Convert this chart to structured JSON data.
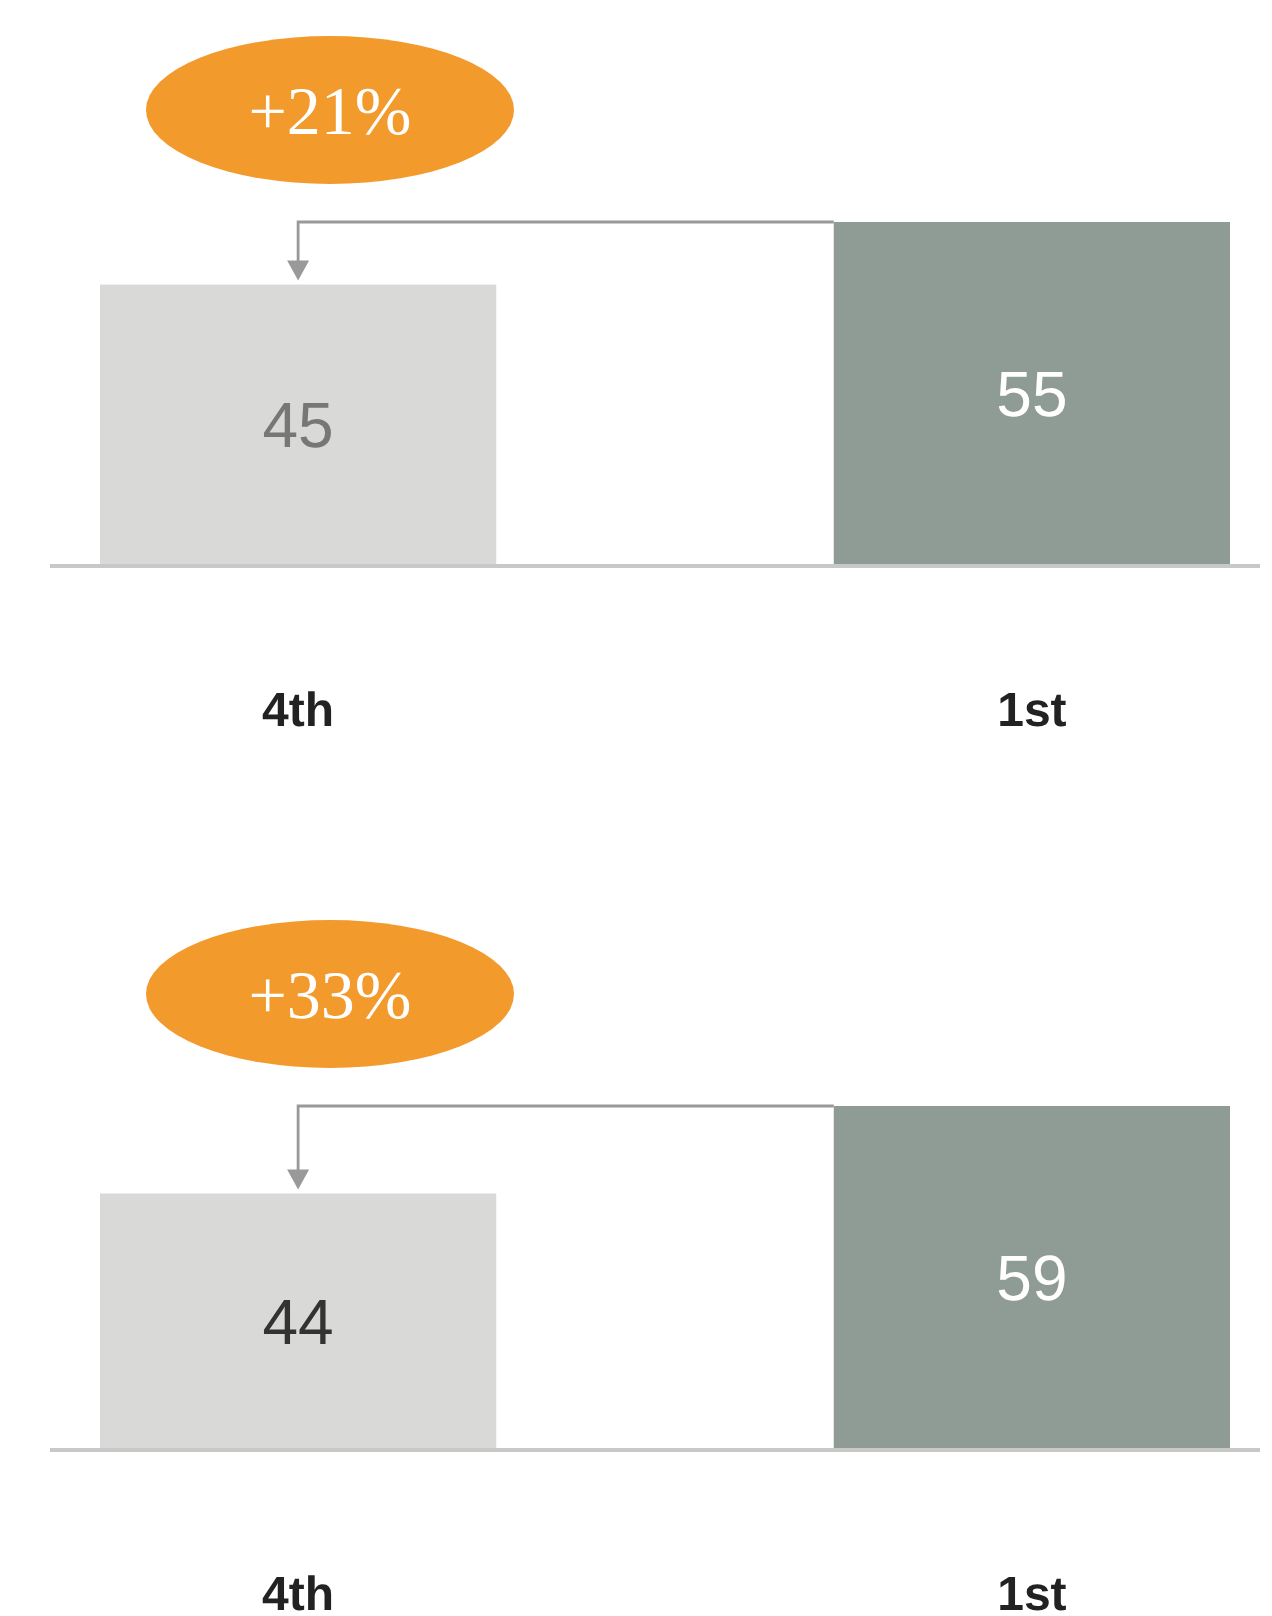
{
  "chart_data": [
    {
      "type": "bar",
      "categories": [
        "4th",
        "1st"
      ],
      "values": [
        45,
        55
      ],
      "colors": [
        "#d9dad8",
        "#8f9b95"
      ],
      "data_labels": true,
      "annotations": [
        "+21%"
      ]
    },
    {
      "type": "bar",
      "categories": [
        "4th",
        "1st"
      ],
      "values": [
        44,
        59
      ],
      "colors": [
        "#d9dad8",
        "#8f9b95"
      ],
      "data_labels": true,
      "annotations": [
        "+33%"
      ]
    }
  ]
}
